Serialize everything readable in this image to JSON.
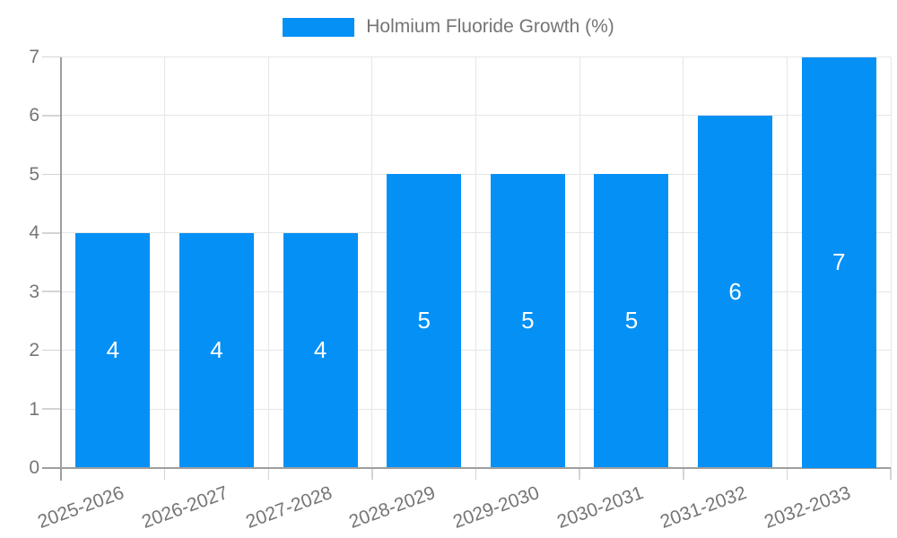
{
  "chart_data": {
    "type": "bar",
    "categories": [
      "2025-2026",
      "2026-2027",
      "2027-2028",
      "2028-2029",
      "2029-2030",
      "2030-2031",
      "2031-2032",
      "2032-2033"
    ],
    "series": [
      {
        "name": "Holmium Fluoride Growth (%)",
        "values": [
          4,
          4,
          4,
          5,
          5,
          5,
          6,
          7
        ]
      }
    ],
    "title": "",
    "xlabel": "",
    "ylabel": "",
    "ylim": [
      0,
      7
    ],
    "yticks": [
      0,
      1,
      2,
      3,
      4,
      5,
      6,
      7
    ],
    "grid": "both",
    "legend_position": "top-center",
    "bar_labels_visible": true,
    "colors": {
      "bar": "#0590F5",
      "bar_value_text": "#FFFFFF",
      "tick_text": "#757575",
      "legend_text": "#757575",
      "axis_line": "#9E9E9E",
      "grid_line": "#E6E6E6",
      "tick_mark": "#D4D4D4",
      "background": "#FFFFFF"
    }
  }
}
